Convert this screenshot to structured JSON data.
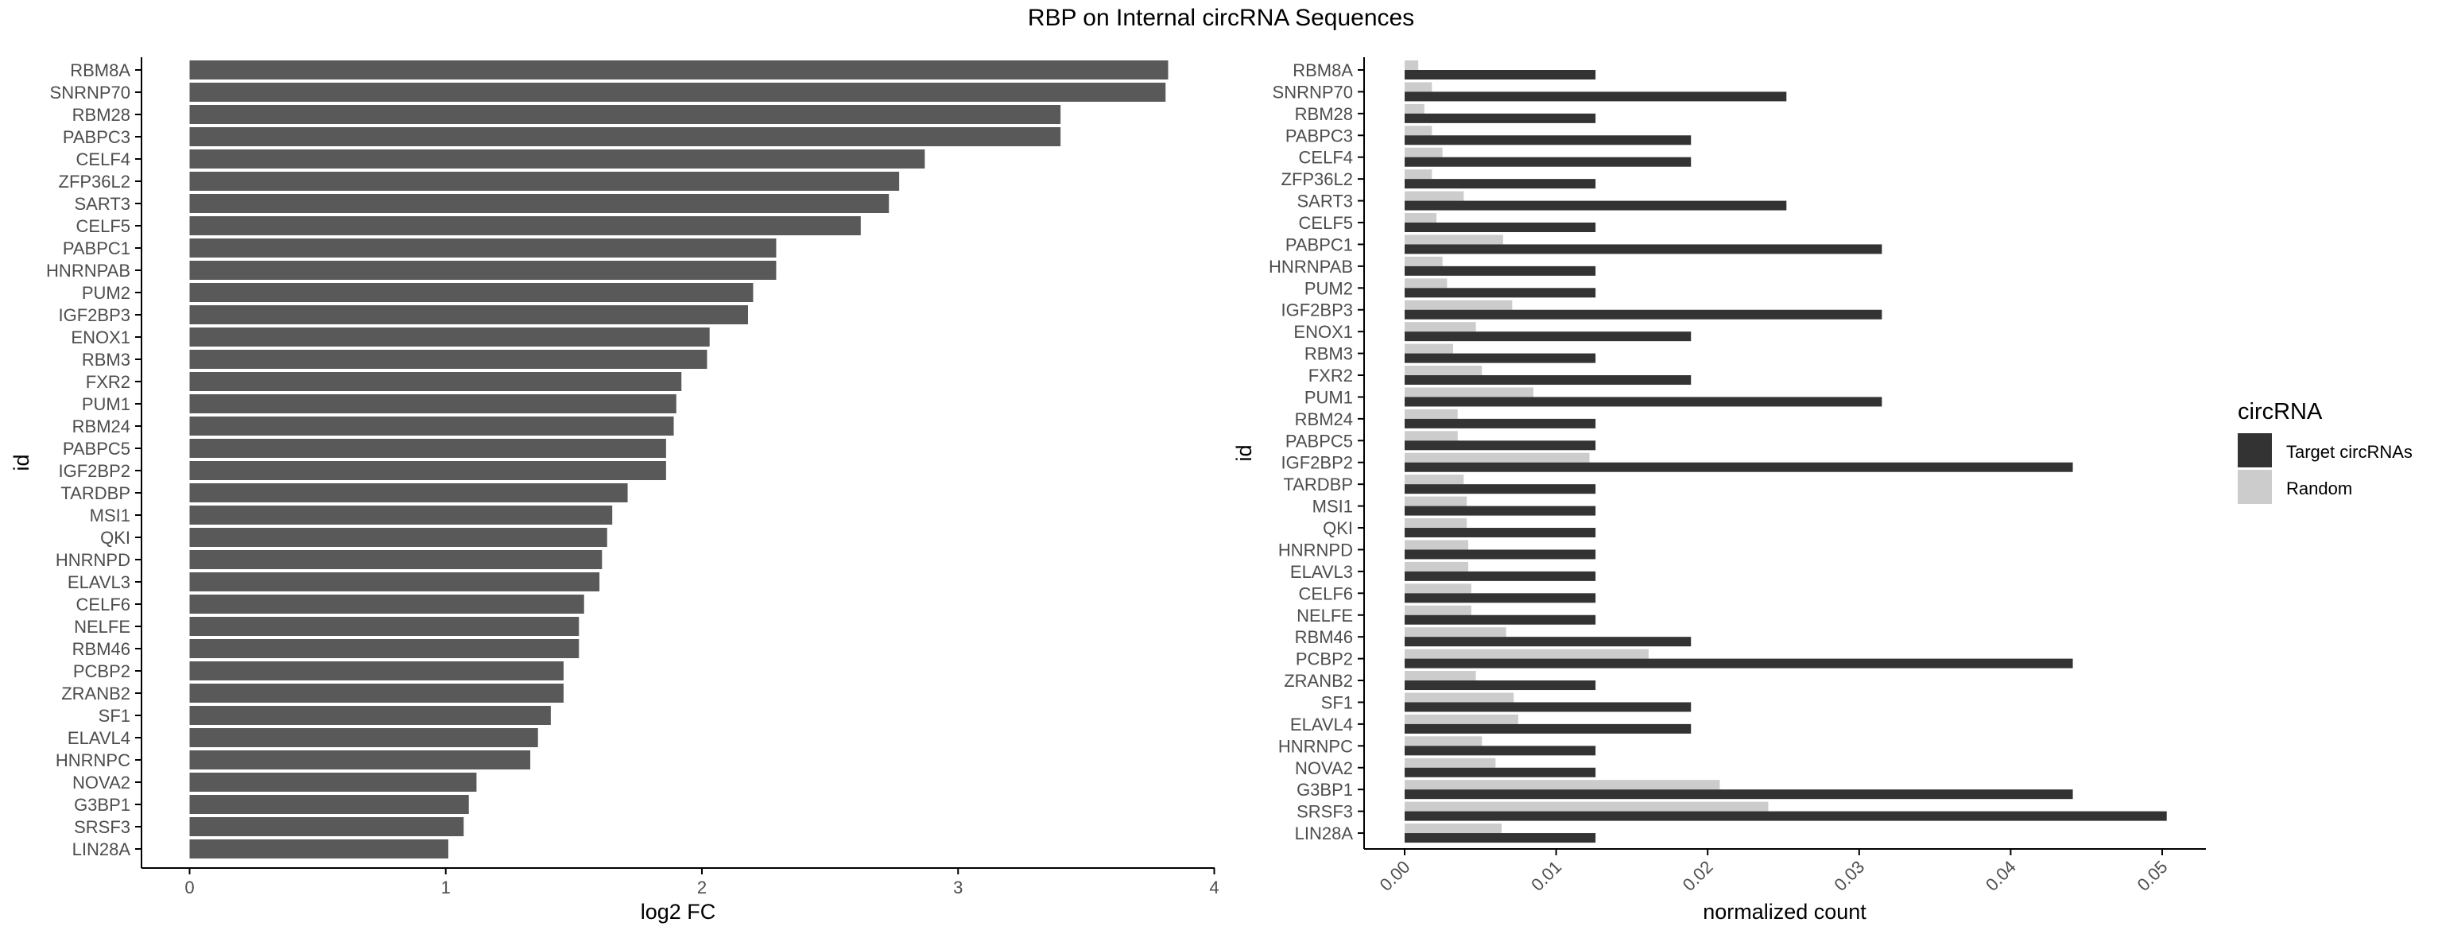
{
  "title": "RBP on Internal circRNA Sequences",
  "colors": {
    "bar_left": "#595959",
    "target": "#333333",
    "random": "#cccccc",
    "axis": "#000000",
    "tick_text": "#4d4d4d"
  },
  "chart_data": [
    {
      "type": "bar",
      "orientation": "horizontal",
      "title": "",
      "xlabel": "log2 FC",
      "ylabel": "id",
      "xlim": [
        0,
        4
      ],
      "xticks": [
        "0",
        "1",
        "2",
        "3",
        "4"
      ],
      "grid": false,
      "categories": [
        "RBM8A",
        "SNRNP70",
        "RBM28",
        "PABPC3",
        "CELF4",
        "ZFP36L2",
        "SART3",
        "CELF5",
        "PABPC1",
        "HNRNPAB",
        "PUM2",
        "IGF2BP3",
        "ENOX1",
        "RBM3",
        "FXR2",
        "PUM1",
        "RBM24",
        "PABPC5",
        "IGF2BP2",
        "TARDBP",
        "MSI1",
        "QKI",
        "HNRNPD",
        "ELAVL3",
        "CELF6",
        "NELFE",
        "RBM46",
        "PCBP2",
        "ZRANB2",
        "SF1",
        "ELAVL4",
        "HNRNPC",
        "NOVA2",
        "G3BP1",
        "SRSF3",
        "LIN28A"
      ],
      "values": [
        3.82,
        3.81,
        3.4,
        3.4,
        2.87,
        2.77,
        2.73,
        2.62,
        2.29,
        2.29,
        2.2,
        2.18,
        2.03,
        2.02,
        1.92,
        1.9,
        1.89,
        1.86,
        1.86,
        1.71,
        1.65,
        1.63,
        1.61,
        1.6,
        1.54,
        1.52,
        1.52,
        1.46,
        1.46,
        1.41,
        1.36,
        1.33,
        1.12,
        1.09,
        1.07,
        1.01
      ]
    },
    {
      "type": "bar",
      "orientation": "horizontal",
      "title": "",
      "xlabel": "normalized count",
      "ylabel": "id",
      "xlim": [
        -0.0025,
        0.0528
      ],
      "xticks": [
        "0.00",
        "0.01",
        "0.02",
        "0.03",
        "0.04",
        "0.05"
      ],
      "grid": false,
      "legend_title": "circRNA",
      "legend_position": "right",
      "categories": [
        "RBM8A",
        "SNRNP70",
        "RBM28",
        "PABPC3",
        "CELF4",
        "ZFP36L2",
        "SART3",
        "CELF5",
        "PABPC1",
        "HNRNPAB",
        "PUM2",
        "IGF2BP3",
        "ENOX1",
        "RBM3",
        "FXR2",
        "PUM1",
        "RBM24",
        "PABPC5",
        "IGF2BP2",
        "TARDBP",
        "MSI1",
        "QKI",
        "HNRNPD",
        "ELAVL3",
        "CELF6",
        "NELFE",
        "RBM46",
        "PCBP2",
        "ZRANB2",
        "SF1",
        "ELAVL4",
        "HNRNPC",
        "NOVA2",
        "G3BP1",
        "SRSF3",
        "LIN28A"
      ],
      "series": [
        {
          "name": "Target circRNAs",
          "values": [
            0.0126,
            0.0252,
            0.0126,
            0.0189,
            0.0189,
            0.0126,
            0.0252,
            0.0126,
            0.0315,
            0.0126,
            0.0126,
            0.0315,
            0.0189,
            0.0126,
            0.0189,
            0.0315,
            0.0126,
            0.0126,
            0.0441,
            0.0126,
            0.0126,
            0.0126,
            0.0126,
            0.0126,
            0.0126,
            0.0126,
            0.0189,
            0.0441,
            0.0126,
            0.0189,
            0.0189,
            0.0126,
            0.0126,
            0.0441,
            0.0503,
            0.0126
          ]
        },
        {
          "name": "Random",
          "values": [
            0.0009,
            0.0018,
            0.0013,
            0.0018,
            0.0025,
            0.0018,
            0.0039,
            0.0021,
            0.0065,
            0.0025,
            0.0028,
            0.0071,
            0.0047,
            0.0032,
            0.0051,
            0.0085,
            0.0035,
            0.0035,
            0.0122,
            0.0039,
            0.0041,
            0.0041,
            0.0042,
            0.0042,
            0.0044,
            0.0044,
            0.0067,
            0.0161,
            0.0047,
            0.0072,
            0.0075,
            0.0051,
            0.006,
            0.0208,
            0.024,
            0.0064
          ]
        }
      ]
    }
  ]
}
